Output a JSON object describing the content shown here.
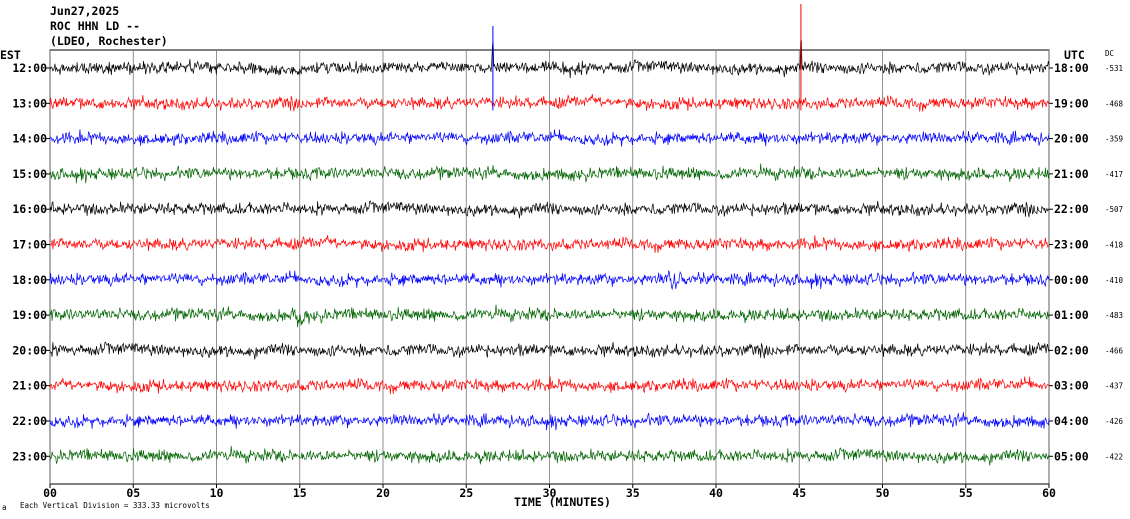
{
  "header": {
    "date": "Jun27,2025",
    "station": "ROC HHN LD --",
    "network": "(LDEO, Rochester)"
  },
  "footer": {
    "note": "Each Vertical Division =  333.33 microvolts",
    "mark": "a"
  },
  "chart_data": {
    "type": "line",
    "title": "",
    "xlabel": "TIME (MINUTES)",
    "left_axis_label": "EST",
    "right_axis_label": "UTC",
    "dc_label": "DC",
    "xlim": [
      0,
      60
    ],
    "x_ticks": [
      "00",
      "05",
      "10",
      "15",
      "20",
      "25",
      "30",
      "35",
      "40",
      "45",
      "50",
      "55",
      "60"
    ],
    "x_tick_values": [
      0,
      5,
      10,
      15,
      20,
      25,
      30,
      35,
      40,
      45,
      50,
      55,
      60
    ],
    "grid": "vertical every 5 minutes",
    "trace_color_cycle": [
      "#000000",
      "#ff0000",
      "#0000ff",
      "#006400"
    ],
    "series": [
      {
        "est": "12:00",
        "utc": "18:00",
        "dc": "-531",
        "color": "#000000"
      },
      {
        "est": "13:00",
        "utc": "19:00",
        "dc": "-468",
        "color": "#ff0000"
      },
      {
        "est": "14:00",
        "utc": "20:00",
        "dc": "-359",
        "color": "#0000ff"
      },
      {
        "est": "15:00",
        "utc": "21:00",
        "dc": "-417",
        "color": "#006400"
      },
      {
        "est": "16:00",
        "utc": "22:00",
        "dc": "-507",
        "color": "#000000"
      },
      {
        "est": "17:00",
        "utc": "23:00",
        "dc": "-418",
        "color": "#ff0000"
      },
      {
        "est": "18:00",
        "utc": "00:00",
        "dc": "-410",
        "color": "#0000ff"
      },
      {
        "est": "19:00",
        "utc": "01:00",
        "dc": "-483",
        "color": "#006400"
      },
      {
        "est": "20:00",
        "utc": "02:00",
        "dc": "-466",
        "color": "#000000"
      },
      {
        "est": "21:00",
        "utc": "03:00",
        "dc": "-437",
        "color": "#ff0000"
      },
      {
        "est": "22:00",
        "utc": "04:00",
        "dc": "-426",
        "color": "#0000ff"
      },
      {
        "est": "23:00",
        "utc": "05:00",
        "dc": "-422",
        "color": "#006400"
      }
    ],
    "notable_events": [
      {
        "row": 0,
        "minute": 26.6,
        "spike": "blue upward spike"
      },
      {
        "row": 0,
        "minute": 45.1,
        "spike": "red upward spike"
      },
      {
        "row": 7,
        "minute": 15.0,
        "spike": "low-frequency wave packet"
      },
      {
        "row": 6,
        "minute": 37.5,
        "spike": "low-frequency wave packet"
      }
    ]
  }
}
